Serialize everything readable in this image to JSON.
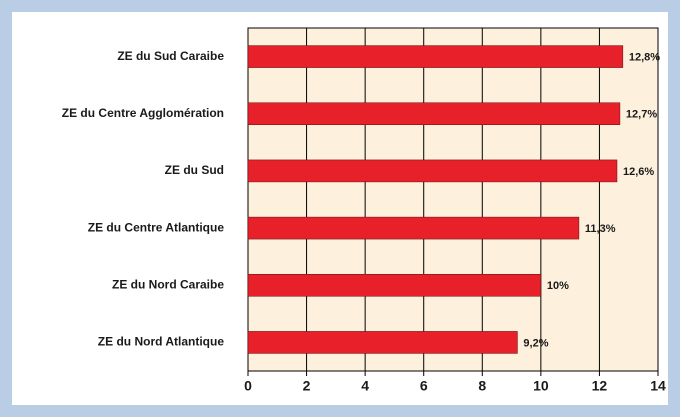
{
  "chart_data": {
    "type": "bar",
    "orientation": "horizontal",
    "categories": [
      "ZE du Sud Caraibe",
      "ZE du Centre Agglomération",
      "ZE du Sud",
      "ZE du Centre Atlantique",
      "ZE du Nord Caraibe",
      "ZE du Nord Atlantique"
    ],
    "values": [
      12.8,
      12.7,
      12.6,
      11.3,
      10,
      9.2
    ],
    "value_labels": [
      "12,8%",
      "12,7%",
      "12,6%",
      "11,3%",
      "10%",
      "9,2%"
    ],
    "color": "#e8202a",
    "xlim": [
      0,
      14
    ],
    "xticks": [
      0,
      2,
      4,
      6,
      8,
      10,
      12,
      14
    ],
    "grid": true
  }
}
